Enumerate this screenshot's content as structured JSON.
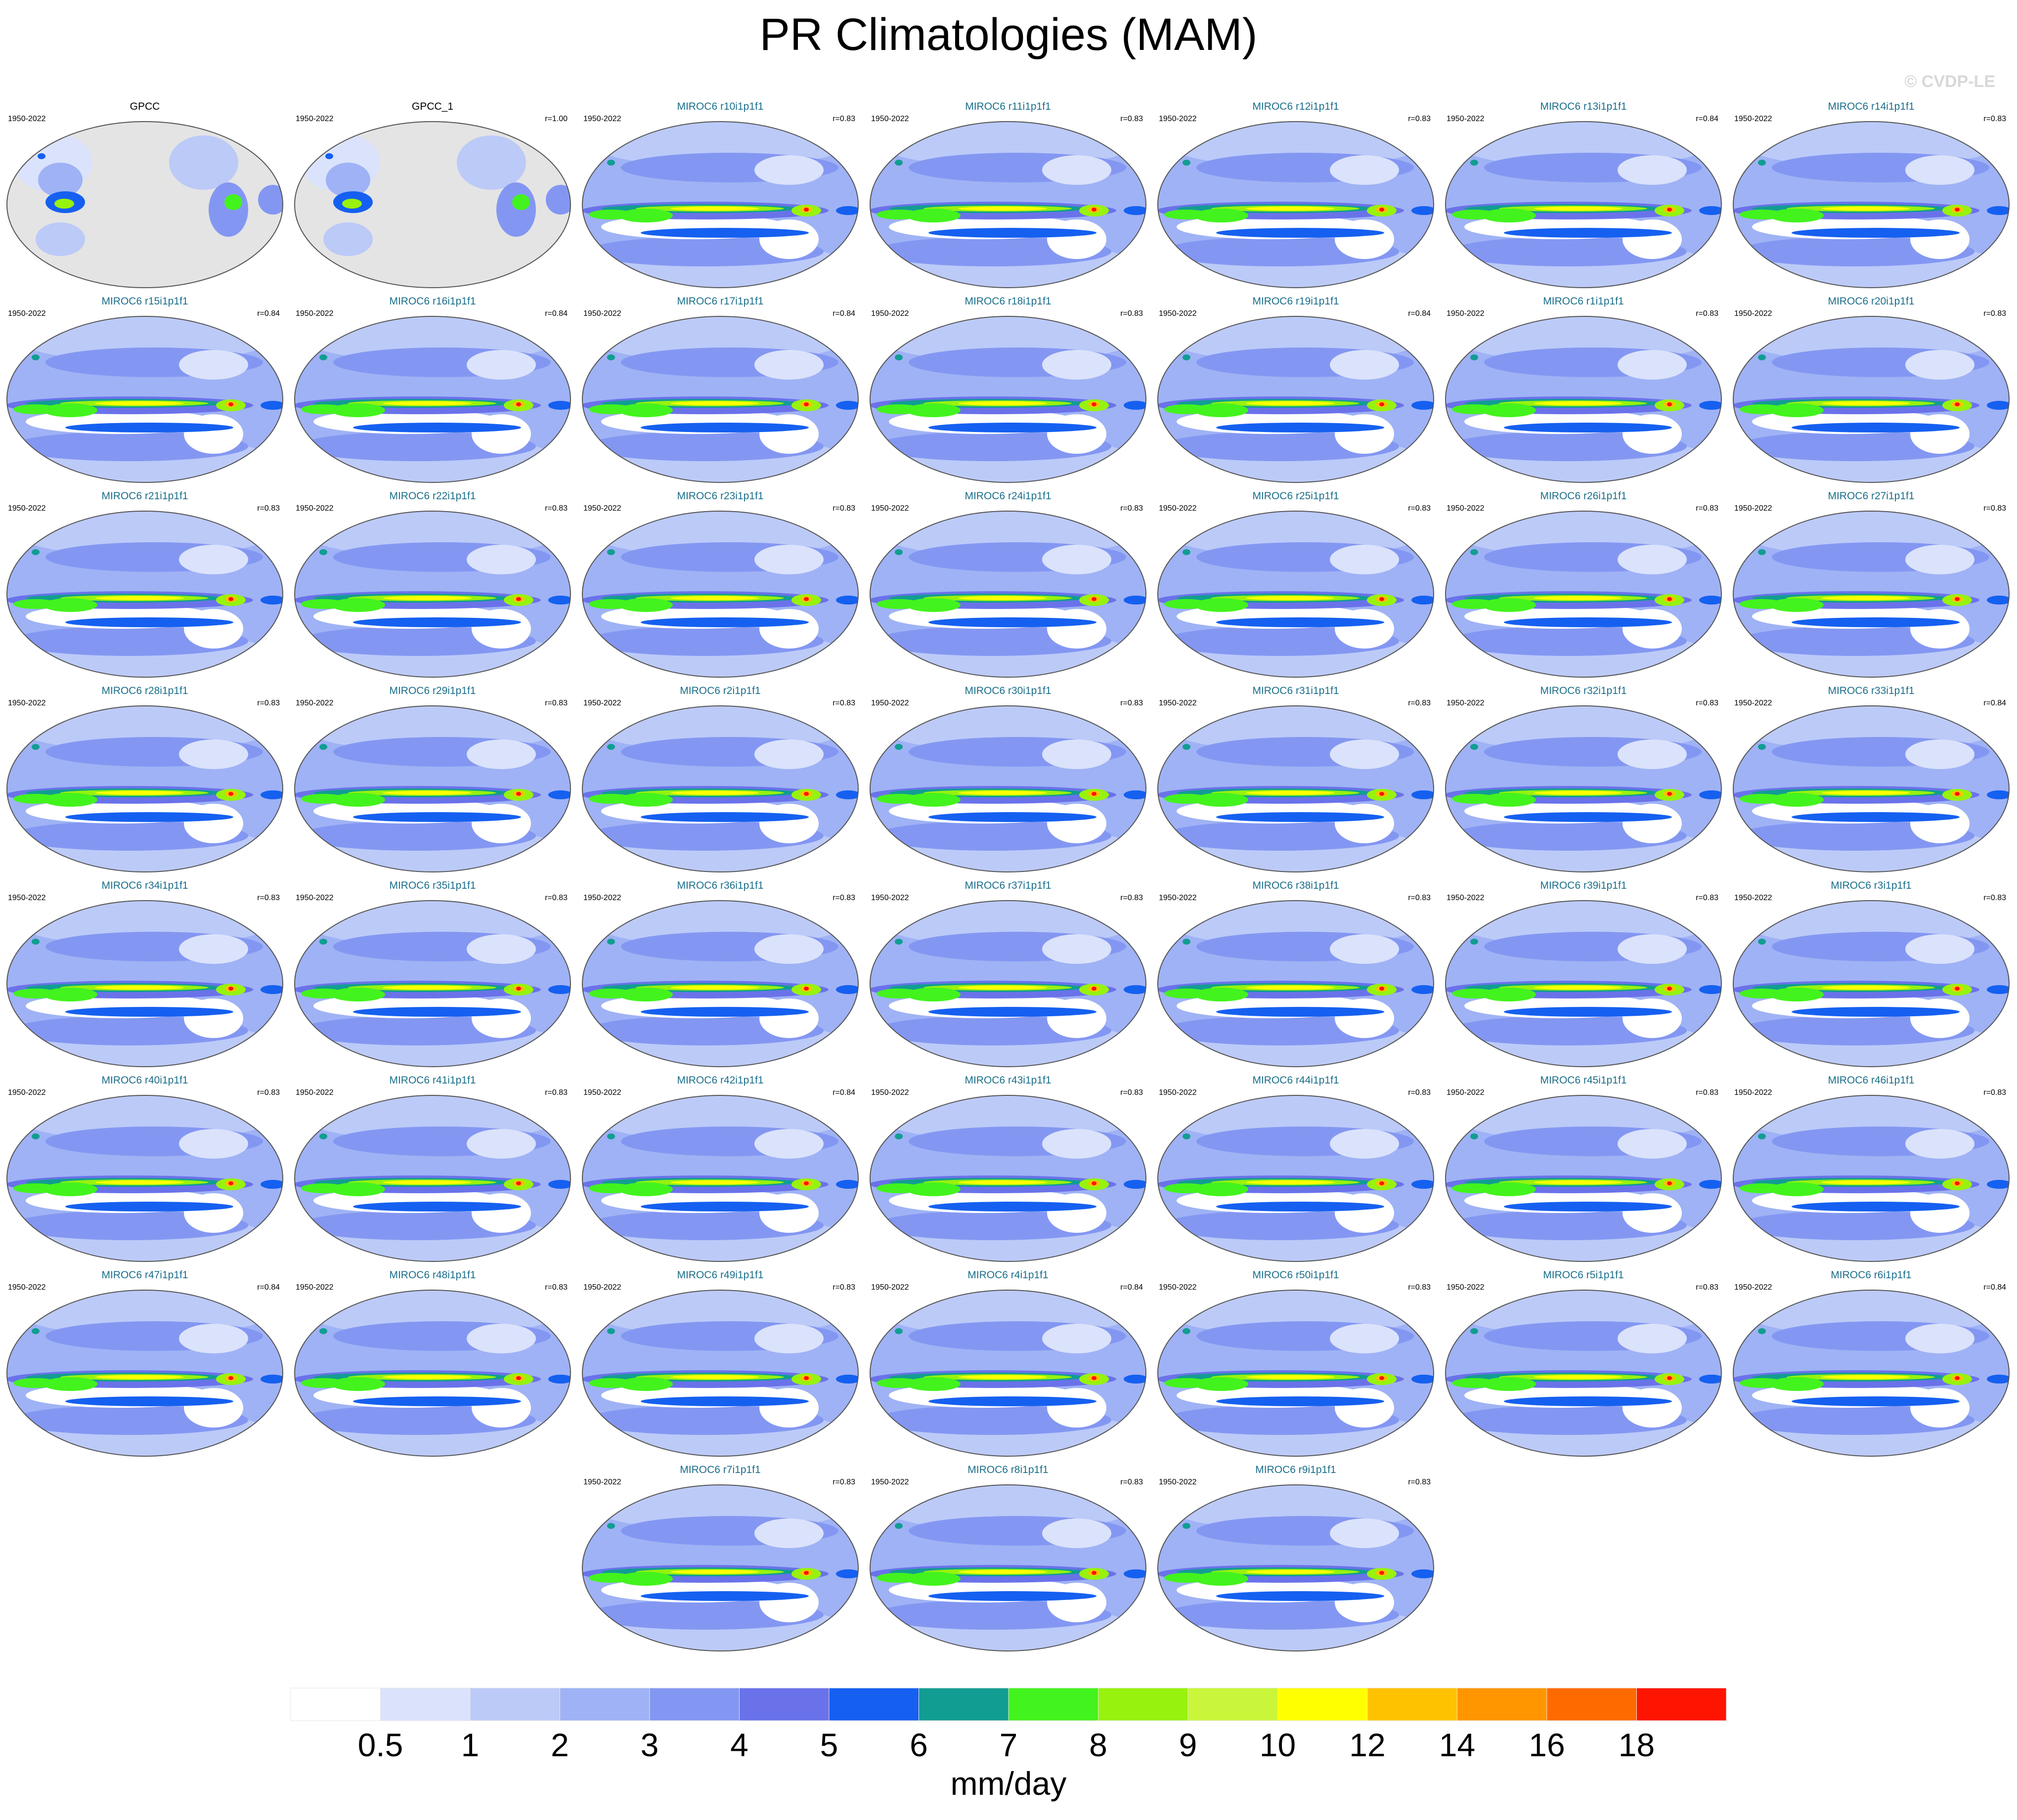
{
  "title": "PR Climatologies (MAM)",
  "watermark": "© CVDP-LE",
  "chart_data": {
    "type": "heatmap",
    "title": "PR Climatologies (MAM)",
    "units": "mm/day",
    "colorbar": {
      "levels": [
        "0.5",
        "1",
        "2",
        "3",
        "4",
        "5",
        "6",
        "7",
        "8",
        "9",
        "10",
        "12",
        "14",
        "16",
        "18"
      ],
      "colors": [
        "#ffffff",
        "#dbe2fb",
        "#bccaf8",
        "#9fb2f5",
        "#8397f2",
        "#6a72ea",
        "#1560f0",
        "#129d92",
        "#43f31d",
        "#97f20e",
        "#c9f53a",
        "#ffff00",
        "#ffc200",
        "#ff9600",
        "#ff6a00",
        "#ff1400"
      ]
    },
    "panels": [
      {
        "title": "GPCC",
        "years": "1950-2022",
        "r": "",
        "obs": true
      },
      {
        "title": "GPCC_1",
        "years": "1950-2022",
        "r": "r=1.00",
        "obs": true
      },
      {
        "title": "MIROC6 r10i1p1f1",
        "years": "1950-2022",
        "r": "r=0.83"
      },
      {
        "title": "MIROC6 r11i1p1f1",
        "years": "1950-2022",
        "r": "r=0.83"
      },
      {
        "title": "MIROC6 r12i1p1f1",
        "years": "1950-2022",
        "r": "r=0.83"
      },
      {
        "title": "MIROC6 r13i1p1f1",
        "years": "1950-2022",
        "r": "r=0.84"
      },
      {
        "title": "MIROC6 r14i1p1f1",
        "years": "1950-2022",
        "r": "r=0.83"
      },
      {
        "title": "MIROC6 r15i1p1f1",
        "years": "1950-2022",
        "r": "r=0.84"
      },
      {
        "title": "MIROC6 r16i1p1f1",
        "years": "1950-2022",
        "r": "r=0.84"
      },
      {
        "title": "MIROC6 r17i1p1f1",
        "years": "1950-2022",
        "r": "r=0.84"
      },
      {
        "title": "MIROC6 r18i1p1f1",
        "years": "1950-2022",
        "r": "r=0.83"
      },
      {
        "title": "MIROC6 r19i1p1f1",
        "years": "1950-2022",
        "r": "r=0.84"
      },
      {
        "title": "MIROC6 r1i1p1f1",
        "years": "1950-2022",
        "r": "r=0.83"
      },
      {
        "title": "MIROC6 r20i1p1f1",
        "years": "1950-2022",
        "r": "r=0.83"
      },
      {
        "title": "MIROC6 r21i1p1f1",
        "years": "1950-2022",
        "r": "r=0.83"
      },
      {
        "title": "MIROC6 r22i1p1f1",
        "years": "1950-2022",
        "r": "r=0.83"
      },
      {
        "title": "MIROC6 r23i1p1f1",
        "years": "1950-2022",
        "r": "r=0.83"
      },
      {
        "title": "MIROC6 r24i1p1f1",
        "years": "1950-2022",
        "r": "r=0.83"
      },
      {
        "title": "MIROC6 r25i1p1f1",
        "years": "1950-2022",
        "r": "r=0.83"
      },
      {
        "title": "MIROC6 r26i1p1f1",
        "years": "1950-2022",
        "r": "r=0.83"
      },
      {
        "title": "MIROC6 r27i1p1f1",
        "years": "1950-2022",
        "r": "r=0.83"
      },
      {
        "title": "MIROC6 r28i1p1f1",
        "years": "1950-2022",
        "r": "r=0.83"
      },
      {
        "title": "MIROC6 r29i1p1f1",
        "years": "1950-2022",
        "r": "r=0.83"
      },
      {
        "title": "MIROC6 r2i1p1f1",
        "years": "1950-2022",
        "r": "r=0.83"
      },
      {
        "title": "MIROC6 r30i1p1f1",
        "years": "1950-2022",
        "r": "r=0.83"
      },
      {
        "title": "MIROC6 r31i1p1f1",
        "years": "1950-2022",
        "r": "r=0.83"
      },
      {
        "title": "MIROC6 r32i1p1f1",
        "years": "1950-2022",
        "r": "r=0.83"
      },
      {
        "title": "MIROC6 r33i1p1f1",
        "years": "1950-2022",
        "r": "r=0.84"
      },
      {
        "title": "MIROC6 r34i1p1f1",
        "years": "1950-2022",
        "r": "r=0.83"
      },
      {
        "title": "MIROC6 r35i1p1f1",
        "years": "1950-2022",
        "r": "r=0.83"
      },
      {
        "title": "MIROC6 r36i1p1f1",
        "years": "1950-2022",
        "r": "r=0.83"
      },
      {
        "title": "MIROC6 r37i1p1f1",
        "years": "1950-2022",
        "r": "r=0.83"
      },
      {
        "title": "MIROC6 r38i1p1f1",
        "years": "1950-2022",
        "r": "r=0.83"
      },
      {
        "title": "MIROC6 r39i1p1f1",
        "years": "1950-2022",
        "r": "r=0.83"
      },
      {
        "title": "MIROC6 r3i1p1f1",
        "years": "1950-2022",
        "r": "r=0.83"
      },
      {
        "title": "MIROC6 r40i1p1f1",
        "years": "1950-2022",
        "r": "r=0.83"
      },
      {
        "title": "MIROC6 r41i1p1f1",
        "years": "1950-2022",
        "r": "r=0.83"
      },
      {
        "title": "MIROC6 r42i1p1f1",
        "years": "1950-2022",
        "r": "r=0.84"
      },
      {
        "title": "MIROC6 r43i1p1f1",
        "years": "1950-2022",
        "r": "r=0.83"
      },
      {
        "title": "MIROC6 r44i1p1f1",
        "years": "1950-2022",
        "r": "r=0.83"
      },
      {
        "title": "MIROC6 r45i1p1f1",
        "years": "1950-2022",
        "r": "r=0.83"
      },
      {
        "title": "MIROC6 r46i1p1f1",
        "years": "1950-2022",
        "r": "r=0.83"
      },
      {
        "title": "MIROC6 r47i1p1f1",
        "years": "1950-2022",
        "r": "r=0.84"
      },
      {
        "title": "MIROC6 r48i1p1f1",
        "years": "1950-2022",
        "r": "r=0.83"
      },
      {
        "title": "MIROC6 r49i1p1f1",
        "years": "1950-2022",
        "r": "r=0.83"
      },
      {
        "title": "MIROC6 r4i1p1f1",
        "years": "1950-2022",
        "r": "r=0.84"
      },
      {
        "title": "MIROC6 r50i1p1f1",
        "years": "1950-2022",
        "r": "r=0.83"
      },
      {
        "title": "MIROC6 r5i1p1f1",
        "years": "1950-2022",
        "r": "r=0.83"
      },
      {
        "title": "MIROC6 r6i1p1f1",
        "years": "1950-2022",
        "r": "r=0.84"
      },
      {
        "title": "MIROC6 r7i1p1f1",
        "years": "1950-2022",
        "r": "r=0.83"
      },
      {
        "title": "MIROC6 r8i1p1f1",
        "years": "1950-2022",
        "r": "r=0.83"
      },
      {
        "title": "MIROC6 r9i1p1f1",
        "years": "1950-2022",
        "r": "r=0.83"
      }
    ]
  }
}
